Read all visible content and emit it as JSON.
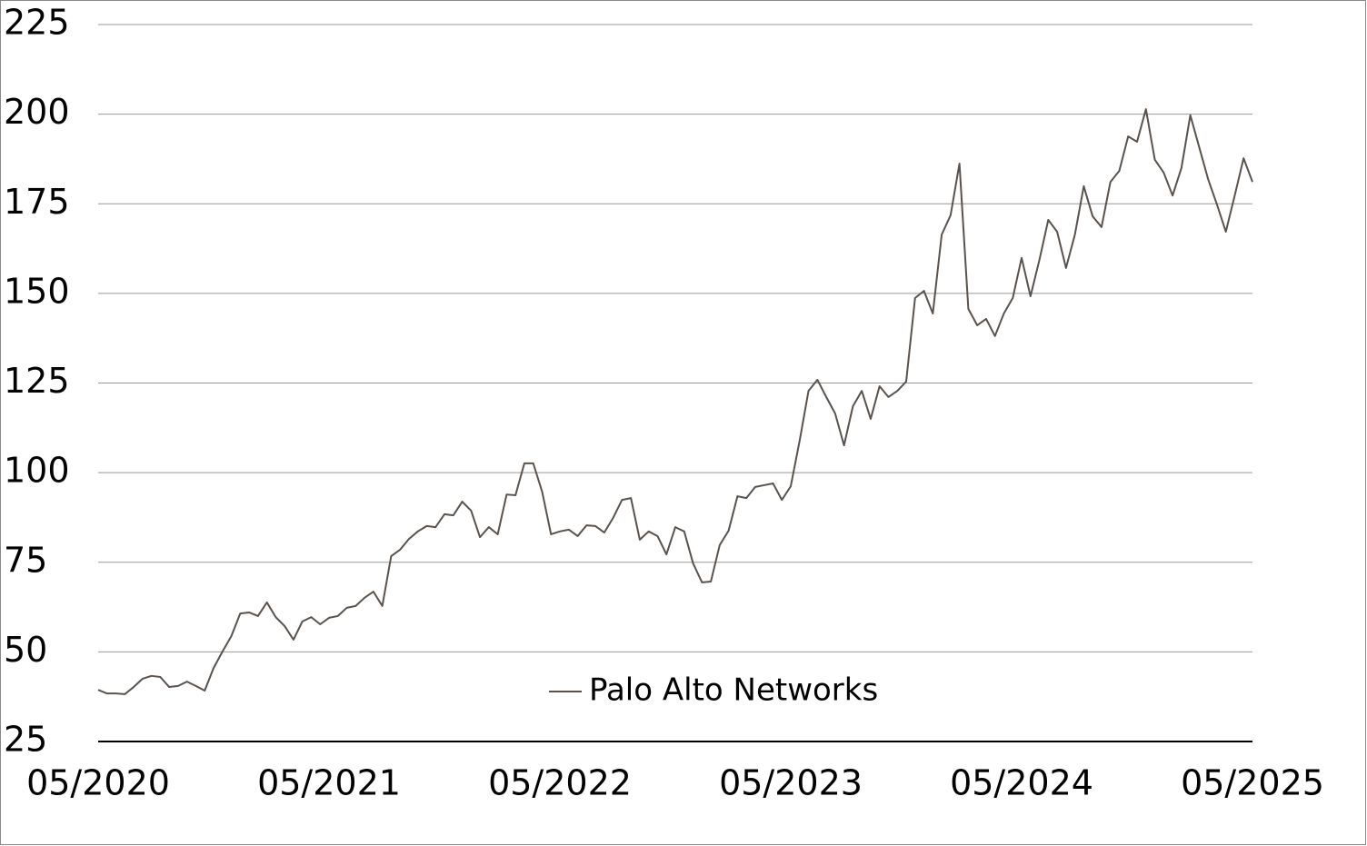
{
  "chart_data": {
    "type": "line",
    "categories": [
      "05/2020",
      null,
      null,
      null,
      null,
      null,
      null,
      null,
      null,
      null,
      null,
      null,
      null,
      null,
      null,
      null,
      null,
      null,
      null,
      null,
      null,
      null,
      null,
      null,
      null,
      null,
      "05/2021",
      null,
      null,
      null,
      null,
      null,
      null,
      null,
      null,
      null,
      null,
      null,
      null,
      null,
      null,
      null,
      null,
      null,
      null,
      null,
      null,
      null,
      null,
      null,
      null,
      null,
      "05/2022",
      null,
      null,
      null,
      null,
      null,
      null,
      null,
      null,
      null,
      null,
      null,
      null,
      null,
      null,
      null,
      null,
      null,
      null,
      null,
      null,
      null,
      null,
      null,
      null,
      null,
      "05/2023",
      null,
      null,
      null,
      null,
      null,
      null,
      null,
      null,
      null,
      null,
      null,
      null,
      null,
      null,
      null,
      null,
      null,
      null,
      null,
      null,
      null,
      null,
      null,
      null,
      null,
      "05/2024",
      null,
      null,
      null,
      null,
      null,
      null,
      null,
      null,
      null,
      null,
      null,
      null,
      null,
      null,
      null,
      null,
      null,
      null,
      null,
      null,
      null,
      null,
      null,
      null,
      null,
      "05/2025"
    ],
    "series": [
      {
        "name": "Palo Alto Networks",
        "color": "#5a534d",
        "values": [
          39.4,
          38.4,
          38.4,
          38.2,
          40.2,
          42.5,
          43.3,
          43.0,
          40.2,
          40.5,
          41.7,
          40.5,
          39.2,
          45.5,
          50.1,
          54.4,
          60.7,
          61.0,
          60.0,
          63.8,
          59.7,
          57.2,
          53.4,
          58.5,
          59.7,
          57.7,
          59.5,
          60.0,
          62.3,
          62.8,
          65.1,
          66.8,
          62.8,
          76.7,
          78.5,
          81.5,
          83.6,
          85.1,
          84.8,
          88.4,
          88.1,
          91.9,
          89.4,
          82.0,
          84.8,
          82.8,
          93.9,
          93.7,
          102.6,
          102.6,
          94.7,
          82.8,
          83.6,
          84.1,
          82.3,
          85.3,
          85.1,
          83.3,
          87.4,
          92.4,
          92.9,
          81.3,
          83.6,
          82.3,
          77.2,
          84.8,
          83.6,
          74.7,
          69.4,
          69.6,
          79.8,
          83.8,
          93.4,
          92.9,
          96.0,
          96.5,
          97.0,
          92.4,
          96.2,
          108.9,
          122.8,
          125.9,
          121.1,
          116.5,
          107.6,
          118.5,
          122.8,
          115.0,
          124.1,
          121.1,
          122.8,
          125.4,
          148.7,
          150.7,
          144.4,
          166.4,
          171.8,
          186.2,
          145.7,
          141.1,
          142.9,
          138.1,
          144.4,
          148.7,
          159.9,
          149.2,
          159.3,
          170.5,
          167.2,
          157.1,
          166.4,
          179.9,
          171.5,
          168.5,
          181.1,
          184.2,
          193.8,
          192.3,
          201.4,
          187.3,
          183.7,
          177.3,
          185.0,
          199.7,
          190.8,
          181.9,
          174.8,
          167.2,
          177.3,
          187.7,
          181.1
        ]
      }
    ],
    "ylim": [
      25,
      225
    ],
    "yticks": [
      25,
      50,
      75,
      100,
      125,
      150,
      175,
      200,
      225
    ],
    "grid": true,
    "legend": "lower center"
  }
}
